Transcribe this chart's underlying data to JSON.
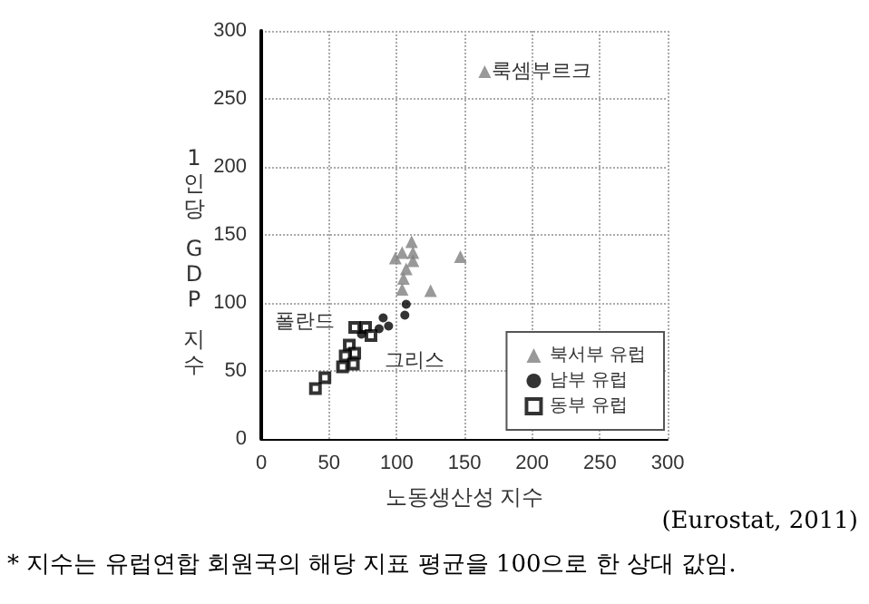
{
  "chart_data": {
    "type": "scatter",
    "xlabel": "노동생산성 지수",
    "ylabel": "1인당 GDP 지수",
    "xlim": [
      0,
      300
    ],
    "xticks": [
      0,
      50,
      100,
      150,
      200,
      250,
      300
    ],
    "ylim": [
      0,
      300
    ],
    "yticks": [
      0,
      50,
      100,
      150,
      200,
      250,
      300
    ],
    "grid": true,
    "legend": "bottom right",
    "series": [
      {
        "name": "북서부 유럽",
        "color": "#808080",
        "marker": "triangle",
        "x": [
          165,
          111,
          99,
          104,
          112,
          112,
          107,
          105,
          104,
          125,
          147
        ],
        "values": [
          270,
          145,
          133,
          137,
          137,
          131,
          125,
          118,
          110,
          109,
          134
        ]
      },
      {
        "name": "남부 유럽",
        "color": "#000000",
        "marker": "circle",
        "x": [
          90,
          94,
          87,
          74,
          106,
          107
        ],
        "values": [
          89,
          83,
          81,
          77,
          91,
          99
        ]
      },
      {
        "name": "동부 유럽",
        "color": "#000000",
        "marker": "square",
        "x": [
          69,
          77,
          81,
          65,
          69,
          62,
          68,
          60,
          47,
          40
        ],
        "values": [
          82,
          82,
          76,
          69,
          63,
          61,
          55,
          53,
          45,
          37
        ]
      }
    ],
    "annotations": [
      {
        "text": "룩셈부르크",
        "x": 165,
        "y": 270
      },
      {
        "text": "폴란드",
        "x": 62,
        "y": 61
      },
      {
        "text": "그리스",
        "x": 94,
        "y": 83
      },
      "(Eurostat, 2011)",
      "* 지수는 유럽연합 회원국의 해당 지표 평균을 100으로 한 상대 값임."
    ]
  }
}
